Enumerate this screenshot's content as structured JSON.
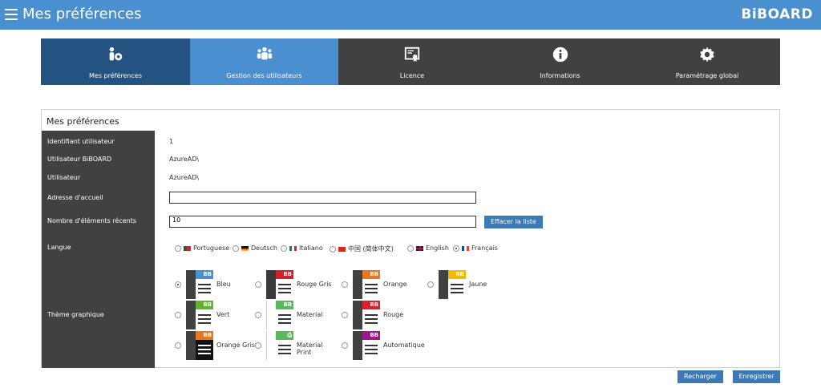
{
  "header": {
    "title": "Mes préférences",
    "brand": "BiBOARD"
  },
  "tabs": [
    {
      "label": "Mes préférences",
      "icon": "user-settings-icon"
    },
    {
      "label": "Gestion des utilisateurs",
      "icon": "users-icon"
    },
    {
      "label": "Licence",
      "icon": "certificate-icon"
    },
    {
      "label": "Informations",
      "icon": "info-icon"
    },
    {
      "label": "Paramétrage global",
      "icon": "gear-icon"
    }
  ],
  "panel": {
    "title": "Mes préférences",
    "fields": {
      "user_id_label": "Identifiant utilisateur",
      "user_id_value": "1",
      "biboard_user_label": "Utilisateur BiBOARD",
      "biboard_user_value": "AzureAD\\",
      "user_label": "Utilisateur",
      "user_value": "AzureAD\\",
      "home_label": "Adresse d'accueil",
      "home_value": "",
      "recent_label": "Nombre d'éléments récents",
      "recent_value": "10",
      "clear_button": "Effacer la liste",
      "language_label": "Langue",
      "theme_label": "Thème graphique"
    },
    "languages": [
      {
        "label": "Portuguese",
        "selected": false
      },
      {
        "label": "Deutsch",
        "selected": false
      },
      {
        "label": "Italiano",
        "selected": false
      },
      {
        "label": "中国 (简体中文)",
        "selected": false
      },
      {
        "label": "English",
        "selected": false
      },
      {
        "label": "Français",
        "selected": true
      }
    ],
    "themes": [
      {
        "label": "Bleu",
        "selected": true,
        "head": "#4a90d0",
        "side": "#414141",
        "body": "#ffffff",
        "logo": "BB"
      },
      {
        "label": "Rouge Gris",
        "selected": false,
        "head": "#d0202a",
        "side": "#3a3a3a",
        "body": "#ffffff",
        "logo": "BB"
      },
      {
        "label": "Orange",
        "selected": false,
        "head": "#e87722",
        "side": "#414141",
        "body": "#ffffff",
        "logo": "BB"
      },
      {
        "label": "Jaune",
        "selected": false,
        "head": "#f5b800",
        "side": "#414141",
        "body": "#ffffff",
        "logo": "BB"
      },
      {
        "label": "Vert",
        "selected": false,
        "head": "#62b22f",
        "side": "#414141",
        "body": "#ffffff",
        "logo": "BB"
      },
      {
        "label": "Material",
        "selected": false,
        "head": "#5cb85c",
        "side": "#ffffff",
        "body": "#ffffff",
        "logo": "BB"
      },
      {
        "label": "Rouge",
        "selected": false,
        "head": "#e01f2d",
        "side": "#414141",
        "body": "#ffffff",
        "logo": "BB"
      },
      {
        "label": "Orange Gris",
        "selected": false,
        "head": "#e87722",
        "side": "#414141",
        "body": "#111111",
        "logo": "BB"
      },
      {
        "label": "Material Print",
        "selected": false,
        "head": "#5cb85c",
        "side": "#ffffff",
        "body": "#ffffff",
        "logo": "⎙"
      },
      {
        "label": "Automatique",
        "selected": false,
        "head": "#a0148c",
        "side": "#414141",
        "body": "#ffffff",
        "logo": "BB"
      }
    ]
  },
  "footer": {
    "reload_button": "Recharger",
    "save_button": "Enregistrer"
  },
  "colors": {
    "topbar": "#4a90d0",
    "dark": "#414141",
    "active_tab": "#255381",
    "button": "#3d79b4"
  }
}
